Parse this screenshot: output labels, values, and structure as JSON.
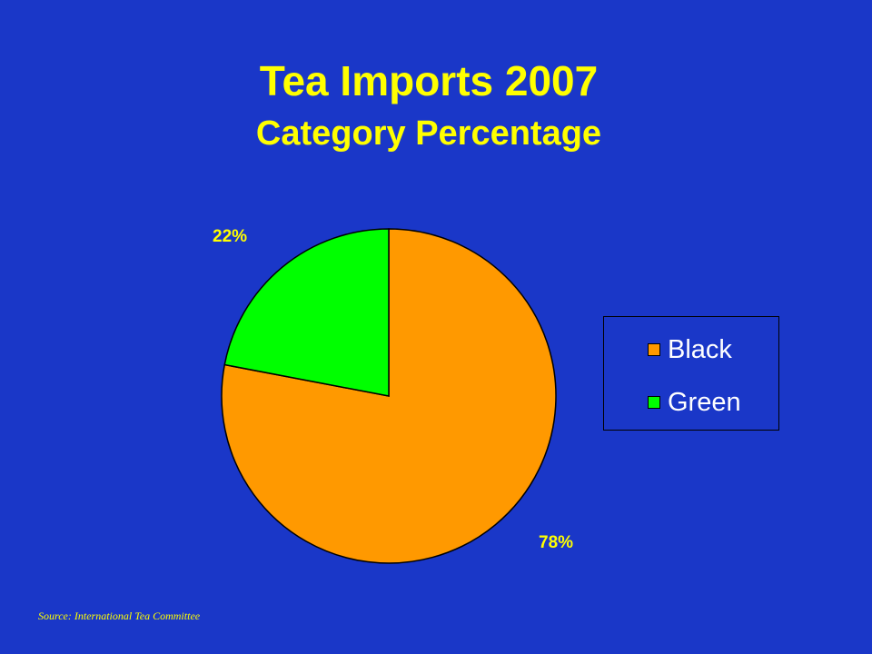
{
  "slide": {
    "title": "Tea Imports 2007",
    "subtitle": "Category Percentage",
    "source": "Source: International  Tea Committee"
  },
  "chart_data": {
    "type": "pie",
    "title": "Tea Imports 2007",
    "subtitle": "Category Percentage",
    "slices": [
      {
        "name": "Black",
        "value": 78,
        "label": "78%",
        "color": "#ff9900"
      },
      {
        "name": "Green",
        "value": 22,
        "label": "22%",
        "color": "#00ff00"
      }
    ],
    "start_angle_deg": 0,
    "direction": "clockwise",
    "legend_position": "right",
    "colors": {
      "background": "#1a37c8",
      "text": "#ffff00",
      "legend_text": "#ffffff",
      "outline": "#000000"
    }
  }
}
